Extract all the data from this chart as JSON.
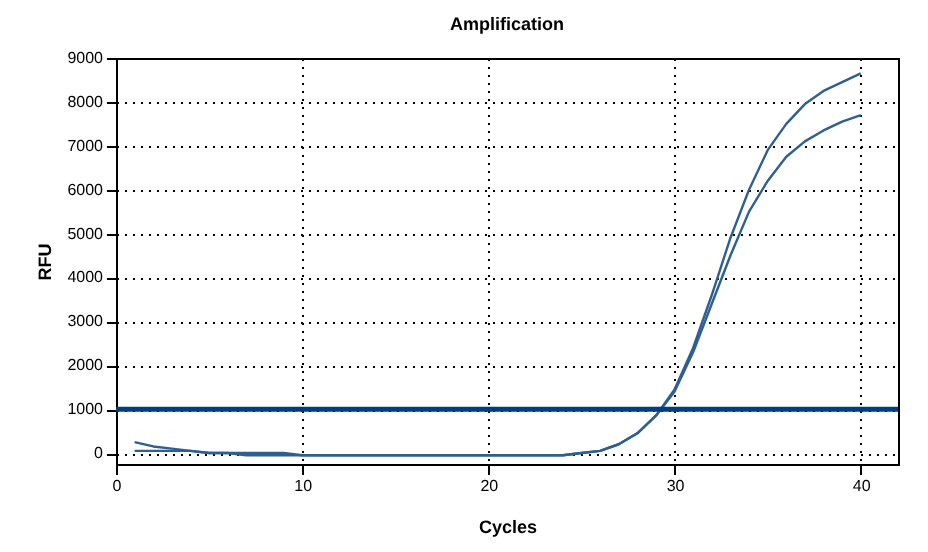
{
  "chart_data": {
    "type": "line",
    "title": "Amplification",
    "xlabel": "Cycles",
    "ylabel": "RFU",
    "x": [
      1,
      2,
      3,
      4,
      5,
      6,
      7,
      8,
      9,
      10,
      11,
      12,
      13,
      14,
      15,
      16,
      17,
      18,
      19,
      20,
      21,
      22,
      23,
      24,
      25,
      26,
      27,
      28,
      29,
      30,
      31,
      32,
      33,
      34,
      35,
      36,
      37,
      38,
      39,
      40
    ],
    "series": [
      {
        "color": "#2f5f92",
        "values": [
          250,
          150,
          100,
          50,
          0,
          0,
          -50,
          -50,
          -50,
          -50,
          -50,
          -50,
          -50,
          -50,
          -50,
          -50,
          -50,
          -50,
          -50,
          -50,
          -50,
          -50,
          -50,
          -50,
          0,
          50,
          200,
          450,
          850,
          1450,
          2400,
          3600,
          4900,
          6000,
          6900,
          7500,
          7950,
          8250,
          8450,
          8650
        ]
      },
      {
        "color": "#2f5f92",
        "values": [
          50,
          50,
          50,
          50,
          0,
          0,
          0,
          0,
          0,
          -50,
          -50,
          -50,
          -50,
          -50,
          -50,
          -50,
          -50,
          -50,
          -50,
          -50,
          -50,
          -50,
          -50,
          -50,
          0,
          50,
          200,
          450,
          850,
          1400,
          2300,
          3400,
          4500,
          5500,
          6200,
          6750,
          7100,
          7350,
          7550,
          7700
        ]
      }
    ],
    "xlim": [
      0,
      42
    ],
    "xticks": [
      0,
      10,
      20,
      30,
      40
    ],
    "ylim": [
      -250,
      9000
    ],
    "yticks": [
      0,
      1000,
      2000,
      3000,
      4000,
      5000,
      6000,
      7000,
      8000,
      9000
    ],
    "grid": true,
    "ref_lines": [
      {
        "axis": "y",
        "value": 1000,
        "color": "#003f7f"
      }
    ]
  }
}
